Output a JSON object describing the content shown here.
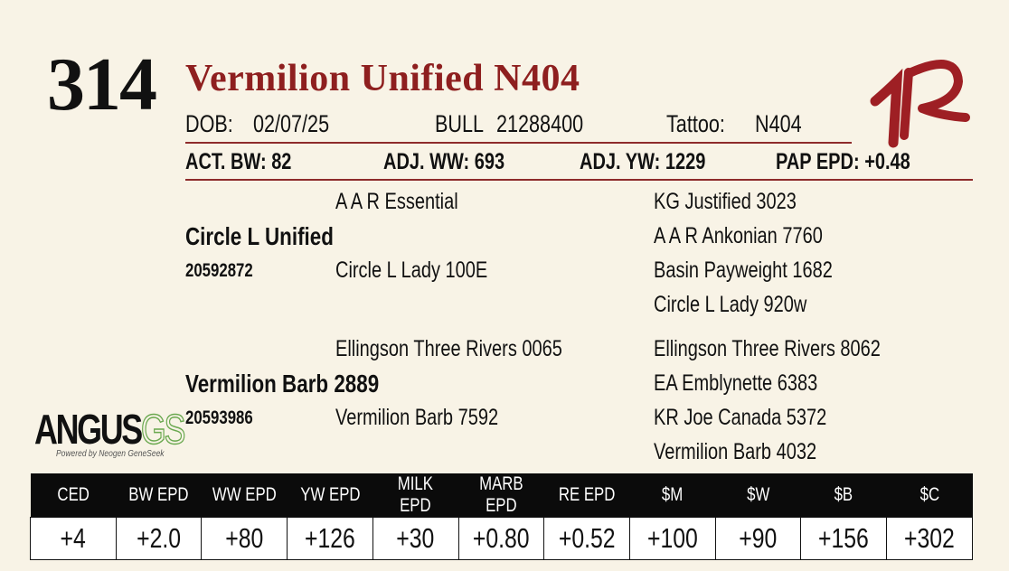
{
  "lot_number": "314",
  "title": "Vermilion Unified N404",
  "info": {
    "dob_label": "DOB:",
    "dob": "02/07/25",
    "sex": "BULL",
    "registration": "21288400",
    "tattoo_label": "Tattoo:",
    "tattoo": "N404"
  },
  "performance": [
    {
      "label": "ACT. BW:",
      "value": "82"
    },
    {
      "label": "ADJ. WW:",
      "value": "693"
    },
    {
      "label": "ADJ. YW:",
      "value": "1229"
    },
    {
      "label": "PAP EPD:",
      "value": "+0.48"
    }
  ],
  "pedigree": {
    "sire": {
      "name": "Circle L Unified",
      "registration": "20592872",
      "sire": "A A R Essential",
      "dam": "Circle L Lady 100E"
    },
    "sire_grandparents": [
      "KG Justified 3023",
      "A A R Ankonian 7760",
      "Basin Payweight 1682",
      "Circle L Lady 920w"
    ],
    "dam": {
      "name": "Vermilion Barb 2889",
      "registration": "20593986",
      "sire": "Ellingson Three Rivers 0065",
      "dam": "Vermilion Barb 7592"
    },
    "dam_grandparents": [
      "Ellingson Three Rivers 8062",
      "EA Emblynette 6383",
      "KR Joe Canada 5372",
      "Vermilion Barb 4032"
    ]
  },
  "logo": {
    "name": "ANGUS",
    "suffix": "GS",
    "tagline": "Powered by Neogen GeneSeek"
  },
  "epd_table": {
    "headers": [
      "CED",
      "BW EPD",
      "WW EPD",
      "YW EPD",
      "MILK EPD",
      "MARB EPD",
      "RE EPD",
      "$M",
      "$W",
      "$B",
      "$C"
    ],
    "values": [
      "+4",
      "+2.0",
      "+80",
      "+126",
      "+30",
      "+0.80",
      "+0.52",
      "+100",
      "+90",
      "+156",
      "+302"
    ]
  }
}
